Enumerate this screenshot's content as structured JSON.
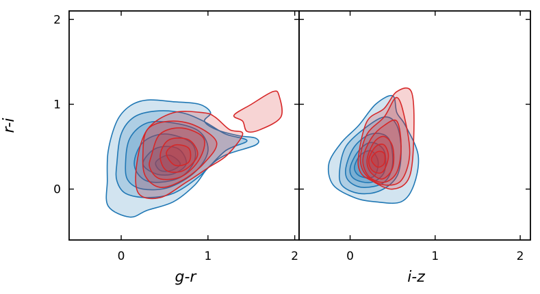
{
  "chart_data": {
    "type": "contour",
    "ylabel": "r-i",
    "ylim": [
      -0.6,
      2.1
    ],
    "yticks": [
      0,
      1,
      2
    ],
    "colors": {
      "blue": "#1f77b4",
      "red": "#d62728",
      "blue_fill": "#1f77b4",
      "red_fill": "#d62728"
    },
    "panels": [
      {
        "xlabel": "g-r",
        "xlim": [
          -0.6,
          2.05
        ],
        "xticks": [
          0,
          1,
          2
        ],
        "series": [
          {
            "color_key": "blue",
            "levels": [
              [
                [
                  -0.15,
                  0.45
                ],
                [
                  -0.05,
                  0.8
                ],
                [
                  0.1,
                  0.98
                ],
                [
                  0.3,
                  1.05
                ],
                [
                  0.6,
                  1.03
                ],
                [
                  0.9,
                  1.0
                ],
                [
                  1.03,
                  0.9
                ],
                [
                  0.96,
                  0.8
                ],
                [
                  1.1,
                  0.7
                ],
                [
                  1.35,
                  0.63
                ],
                [
                  1.55,
                  0.6
                ],
                [
                  1.55,
                  0.52
                ],
                [
                  1.2,
                  0.4
                ],
                [
                  1.0,
                  0.25
                ],
                [
                  0.85,
                  0.05
                ],
                [
                  0.6,
                  -0.15
                ],
                [
                  0.3,
                  -0.25
                ],
                [
                  0.1,
                  -0.33
                ],
                [
                  -0.15,
                  -0.2
                ],
                [
                  -0.16,
                  0.1
                ]
              ],
              [
                [
                  -0.05,
                  0.3
                ],
                [
                  0.0,
                  0.65
                ],
                [
                  0.15,
                  0.85
                ],
                [
                  0.4,
                  0.92
                ],
                [
                  0.7,
                  0.9
                ],
                [
                  0.95,
                  0.8
                ],
                [
                  1.2,
                  0.65
                ],
                [
                  1.45,
                  0.57
                ],
                [
                  1.2,
                  0.45
                ],
                [
                  0.9,
                  0.15
                ],
                [
                  0.6,
                  -0.05
                ],
                [
                  0.3,
                  -0.1
                ],
                [
                  0.05,
                  -0.05
                ],
                [
                  -0.05,
                  0.1
                ]
              ],
              [
                [
                  0.05,
                  0.3
                ],
                [
                  0.1,
                  0.6
                ],
                [
                  0.3,
                  0.78
                ],
                [
                  0.6,
                  0.78
                ],
                [
                  0.9,
                  0.68
                ],
                [
                  1.0,
                  0.45
                ],
                [
                  0.85,
                  0.2
                ],
                [
                  0.55,
                  0.02
                ],
                [
                  0.25,
                  0.0
                ],
                [
                  0.08,
                  0.1
                ]
              ],
              [
                [
                  0.15,
                  0.3
                ],
                [
                  0.25,
                  0.55
                ],
                [
                  0.5,
                  0.65
                ],
                [
                  0.8,
                  0.55
                ],
                [
                  0.85,
                  0.35
                ],
                [
                  0.7,
                  0.15
                ],
                [
                  0.45,
                  0.08
                ],
                [
                  0.25,
                  0.12
                ]
              ],
              [
                [
                  0.25,
                  0.3
                ],
                [
                  0.4,
                  0.48
                ],
                [
                  0.65,
                  0.48
                ],
                [
                  0.75,
                  0.3
                ],
                [
                  0.6,
                  0.18
                ],
                [
                  0.4,
                  0.18
                ]
              ],
              [
                [
                  0.4,
                  0.32
                ],
                [
                  0.55,
                  0.4
                ],
                [
                  0.68,
                  0.3
                ],
                [
                  0.58,
                  0.22
                ],
                [
                  0.45,
                  0.22
                ]
              ]
            ]
          },
          {
            "color_key": "red",
            "levels": [
              [
                [
                  0.3,
                  0.7
                ],
                [
                  0.6,
                  0.9
                ],
                [
                  0.95,
                  0.9
                ],
                [
                  1.08,
                  0.85
                ],
                [
                  1.25,
                  0.7
                ],
                [
                  1.4,
                  0.65
                ],
                [
                  1.22,
                  0.4
                ],
                [
                  1.0,
                  0.25
                ],
                [
                  0.75,
                  0.08
                ],
                [
                  0.45,
                  -0.1
                ],
                [
                  0.2,
                  -0.05
                ],
                [
                  0.18,
                  0.3
                ]
              ],
              [
                [
                  1.3,
                  0.87
                ],
                [
                  1.5,
                  1.0
                ],
                [
                  1.75,
                  1.15
                ],
                [
                  1.82,
                  1.1
                ],
                [
                  1.84,
                  0.85
                ],
                [
                  1.6,
                  0.7
                ],
                [
                  1.45,
                  0.68
                ],
                [
                  1.4,
                  0.8
                ]
              ],
              [
                [
                  0.25,
                  0.4
                ],
                [
                  0.3,
                  0.7
                ],
                [
                  0.55,
                  0.8
                ],
                [
                  0.85,
                  0.75
                ],
                [
                  1.1,
                  0.55
                ],
                [
                  0.95,
                  0.3
                ],
                [
                  0.7,
                  0.1
                ],
                [
                  0.45,
                  0.02
                ],
                [
                  0.28,
                  0.15
                ]
              ],
              [
                [
                  0.35,
                  0.4
                ],
                [
                  0.45,
                  0.65
                ],
                [
                  0.7,
                  0.72
                ],
                [
                  0.95,
                  0.6
                ],
                [
                  0.9,
                  0.35
                ],
                [
                  0.7,
                  0.15
                ],
                [
                  0.45,
                  0.12
                ],
                [
                  0.33,
                  0.25
                ]
              ],
              [
                [
                  0.45,
                  0.4
                ],
                [
                  0.55,
                  0.58
                ],
                [
                  0.78,
                  0.58
                ],
                [
                  0.88,
                  0.4
                ],
                [
                  0.72,
                  0.22
                ],
                [
                  0.52,
                  0.22
                ]
              ],
              [
                [
                  0.52,
                  0.42
                ],
                [
                  0.62,
                  0.52
                ],
                [
                  0.78,
                  0.48
                ],
                [
                  0.78,
                  0.32
                ],
                [
                  0.62,
                  0.28
                ]
              ]
            ]
          }
        ]
      },
      {
        "xlabel": "i-z",
        "xlim": [
          -0.6,
          2.12
        ],
        "xticks": [
          0,
          1,
          2
        ],
        "series": [
          {
            "color_key": "blue",
            "levels": [
              [
                [
                  -0.25,
                  0.3
                ],
                [
                  -0.1,
                  0.55
                ],
                [
                  0.1,
                  0.75
                ],
                [
                  0.3,
                  1.0
                ],
                [
                  0.5,
                  1.1
                ],
                [
                  0.55,
                  0.9
                ],
                [
                  0.65,
                  0.75
                ],
                [
                  0.8,
                  0.4
                ],
                [
                  0.75,
                  0.05
                ],
                [
                  0.6,
                  -0.15
                ],
                [
                  0.3,
                  -0.15
                ],
                [
                  0.05,
                  -0.1
                ],
                [
                  -0.2,
                  0.05
                ]
              ],
              [
                [
                  -0.12,
                  0.25
                ],
                [
                  -0.05,
                  0.5
                ],
                [
                  0.15,
                  0.7
                ],
                [
                  0.4,
                  0.85
                ],
                [
                  0.55,
                  0.75
                ],
                [
                  0.6,
                  0.45
                ],
                [
                  0.55,
                  0.15
                ],
                [
                  0.35,
                  -0.02
                ],
                [
                  0.1,
                  -0.05
                ],
                [
                  -0.1,
                  0.05
                ]
              ],
              [
                [
                  -0.05,
                  0.25
                ],
                [
                  0.05,
                  0.5
                ],
                [
                  0.25,
                  0.65
                ],
                [
                  0.45,
                  0.6
                ],
                [
                  0.5,
                  0.3
                ],
                [
                  0.4,
                  0.08
                ],
                [
                  0.15,
                  0.02
                ],
                [
                  -0.02,
                  0.1
                ]
              ],
              [
                [
                  0.0,
                  0.25
                ],
                [
                  0.1,
                  0.45
                ],
                [
                  0.25,
                  0.55
                ],
                [
                  0.4,
                  0.45
                ],
                [
                  0.4,
                  0.2
                ],
                [
                  0.25,
                  0.08
                ],
                [
                  0.05,
                  0.12
                ]
              ],
              [
                [
                  0.05,
                  0.25
                ],
                [
                  0.12,
                  0.4
                ],
                [
                  0.25,
                  0.45
                ],
                [
                  0.33,
                  0.32
                ],
                [
                  0.28,
                  0.15
                ],
                [
                  0.12,
                  0.15
                ]
              ]
            ]
          },
          {
            "color_key": "red",
            "levels": [
              [
                [
                  0.1,
                  0.4
                ],
                [
                  0.2,
                  0.8
                ],
                [
                  0.4,
                  0.95
                ],
                [
                  0.55,
                  1.15
                ],
                [
                  0.72,
                  1.15
                ],
                [
                  0.75,
                  0.7
                ],
                [
                  0.7,
                  0.15
                ],
                [
                  0.5,
                  0.0
                ],
                [
                  0.25,
                  0.1
                ],
                [
                  0.12,
                  0.2
                ]
              ],
              [
                [
                  0.12,
                  0.35
                ],
                [
                  0.2,
                  0.65
                ],
                [
                  0.4,
                  0.85
                ],
                [
                  0.55,
                  1.08
                ],
                [
                  0.65,
                  0.8
                ],
                [
                  0.7,
                  0.4
                ],
                [
                  0.6,
                  0.1
                ],
                [
                  0.4,
                  0.05
                ],
                [
                  0.2,
                  0.15
                ]
              ],
              [
                [
                  0.15,
                  0.35
                ],
                [
                  0.25,
                  0.6
                ],
                [
                  0.4,
                  0.75
                ],
                [
                  0.55,
                  0.8
                ],
                [
                  0.6,
                  0.5
                ],
                [
                  0.55,
                  0.2
                ],
                [
                  0.4,
                  0.08
                ],
                [
                  0.22,
                  0.15
                ]
              ],
              [
                [
                  0.2,
                  0.35
                ],
                [
                  0.28,
                  0.55
                ],
                [
                  0.4,
                  0.62
                ],
                [
                  0.5,
                  0.5
                ],
                [
                  0.5,
                  0.25
                ],
                [
                  0.38,
                  0.12
                ],
                [
                  0.24,
                  0.2
                ]
              ],
              [
                [
                  0.22,
                  0.35
                ],
                [
                  0.3,
                  0.5
                ],
                [
                  0.4,
                  0.52
                ],
                [
                  0.45,
                  0.38
                ],
                [
                  0.38,
                  0.2
                ],
                [
                  0.26,
                  0.22
                ]
              ],
              [
                [
                  0.25,
                  0.35
                ],
                [
                  0.32,
                  0.44
                ],
                [
                  0.4,
                  0.42
                ],
                [
                  0.4,
                  0.3
                ],
                [
                  0.32,
                  0.26
                ]
              ]
            ]
          }
        ]
      }
    ]
  }
}
